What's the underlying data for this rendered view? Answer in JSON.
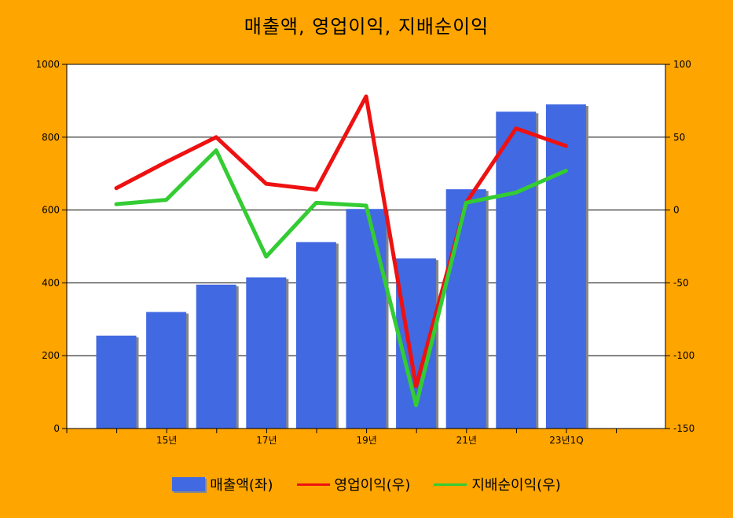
{
  "chart_data": {
    "type": "bar+line",
    "title": "매출액, 영업이익, 지배순이익",
    "x_tick_labels": [
      "15년",
      "17년",
      "19년",
      "21년",
      "23년1Q"
    ],
    "left_axis": {
      "ylim": [
        0,
        1000
      ],
      "ticks": [
        0,
        200,
        400,
        600,
        800,
        1000
      ]
    },
    "right_axis": {
      "ylim": [
        -150,
        100
      ],
      "ticks": [
        -150,
        -100,
        -50,
        0,
        50,
        100
      ]
    },
    "bars": {
      "name": "매출액(좌)",
      "color": "#4169E1",
      "values": [
        255,
        320,
        395,
        415,
        512,
        603,
        467,
        657,
        870,
        890
      ]
    },
    "lines": [
      {
        "name": "영업이익(우)",
        "color": "#EE1111",
        "values": [
          15,
          33,
          50,
          18,
          14,
          78,
          -121,
          5,
          56,
          44
        ]
      },
      {
        "name": "지배순이익(우)",
        "color": "#33CC33",
        "values": [
          4,
          7,
          41,
          -32,
          5,
          3,
          -134,
          5,
          12,
          27
        ]
      }
    ],
    "grid": true,
    "legend_position": "bottom"
  }
}
